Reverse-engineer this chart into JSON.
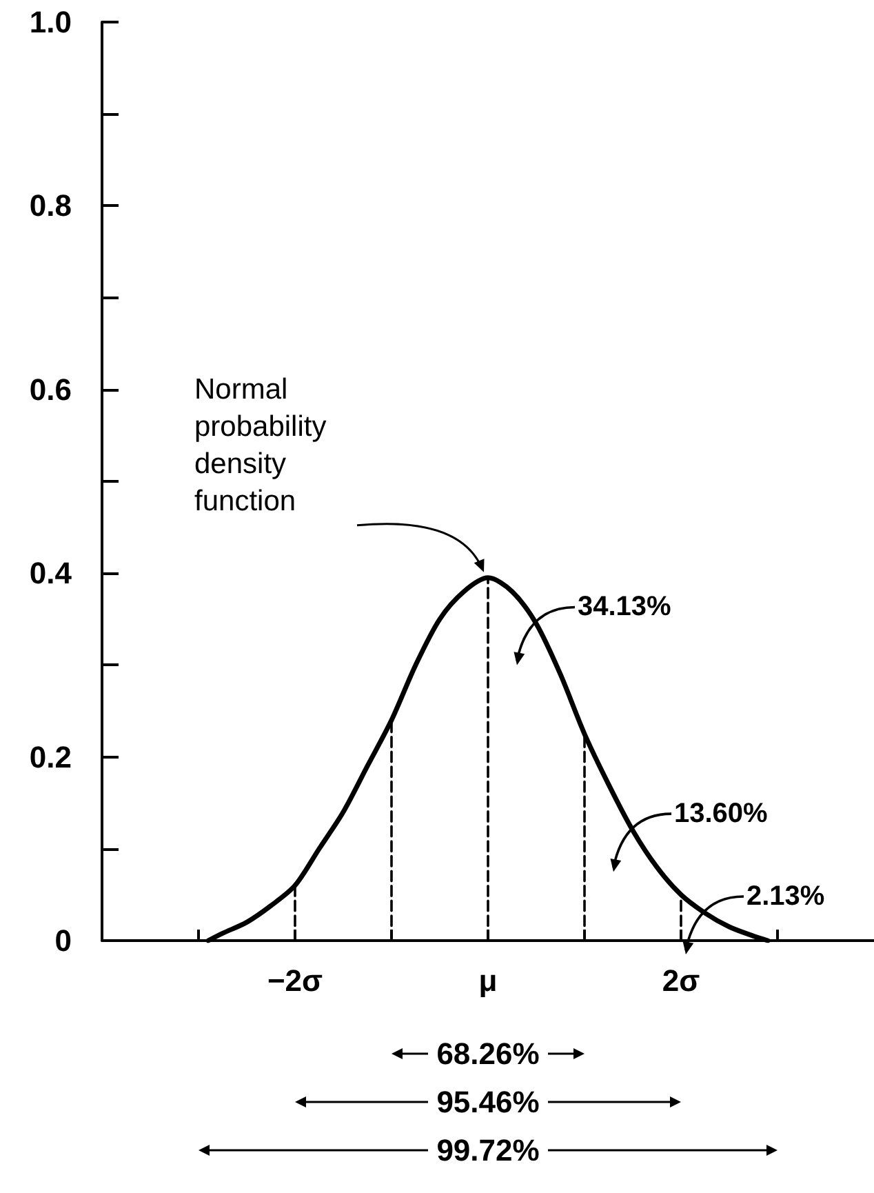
{
  "chart_data": {
    "type": "line",
    "xlim": [
      -4,
      4
    ],
    "ylim": [
      0,
      1
    ],
    "xticks": [
      {
        "value": -3,
        "label": null
      },
      {
        "value": -2,
        "label": "−2σ"
      },
      {
        "value": -1,
        "label": null
      },
      {
        "value": 0,
        "label": "μ"
      },
      {
        "value": 1,
        "label": null
      },
      {
        "value": 2,
        "label": "2σ"
      },
      {
        "value": 3,
        "label": null
      }
    ],
    "yticks": [
      0,
      {
        "value": 0.1,
        "label": null
      },
      0.2,
      {
        "value": 0.3,
        "label": null
      },
      0.4,
      {
        "value": 0.5,
        "label": null
      },
      0.6,
      {
        "value": 0.7,
        "label": null
      },
      0.8,
      {
        "value": 0.9,
        "label": null
      },
      {
        "value": 1,
        "label": "1.0"
      }
    ],
    "marker": "none",
    "grid": false,
    "series": [
      {
        "color": "#000000",
        "line_style": "solid",
        "x": [
          -2.9,
          -2.75,
          -2.5,
          -2.25,
          -2,
          -1.75,
          -1.5,
          -1.25,
          -1,
          -0.75,
          -0.5,
          -0.25,
          0,
          0.25,
          0.5,
          0.75,
          1,
          1.25,
          1.5,
          1.75,
          2,
          2.25,
          2.5,
          2.75,
          2.9
        ],
        "values": [
          0,
          0.008,
          0.02,
          0.038,
          0.06,
          0.1,
          0.14,
          0.19,
          0.24,
          0.3,
          0.35,
          0.38,
          0.395,
          0.38,
          0.345,
          0.29,
          0.225,
          0.17,
          0.12,
          0.08,
          0.05,
          0.03,
          0.015,
          0.005,
          0
        ]
      },
      {
        "color": "#000000",
        "line_style": "dashed",
        "x": [
          -2,
          -2
        ],
        "values": [
          0,
          0.06
        ]
      },
      {
        "color": "#000000",
        "line_style": "dashed",
        "x": [
          -1,
          -1
        ],
        "values": [
          0,
          0.24
        ]
      },
      {
        "color": "#000000",
        "line_style": "dashed",
        "x": [
          0,
          0
        ],
        "values": [
          0,
          0.395
        ]
      },
      {
        "color": "#000000",
        "line_style": "dashed",
        "x": [
          1,
          1
        ],
        "values": [
          0,
          0.225
        ]
      },
      {
        "color": "#000000",
        "line_style": "dashed",
        "x": [
          2,
          2
        ],
        "values": [
          0,
          0.05
        ]
      }
    ],
    "annotations": [
      {
        "text": "Normal probability density function",
        "x": 0,
        "y": 0.395
      },
      {
        "text": "34.13%",
        "x": 0.5,
        "y": 0.345
      },
      {
        "text": "13.60%",
        "x": 1.5,
        "y": 0.12
      },
      {
        "text": "2.13%",
        "x": 2.25,
        "y": 0.03
      },
      "68.26%",
      "95.46%",
      "99.72%"
    ]
  }
}
